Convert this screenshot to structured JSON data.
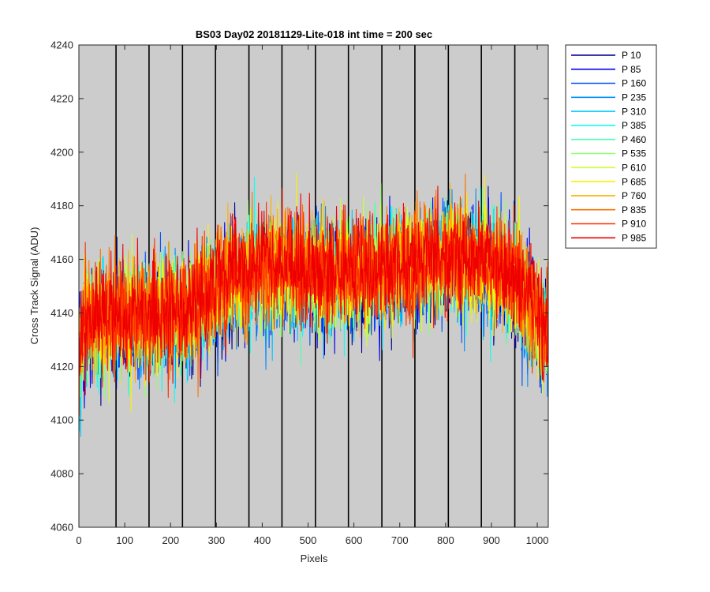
{
  "chart_data": {
    "type": "line",
    "title": "BS03 Day02 20181129-Lite-018 int time = 200 sec",
    "xlabel": "Pixels",
    "ylabel": "Cross Track Signal (ADU)",
    "xlim": [
      0,
      1024
    ],
    "ylim": [
      4060,
      4240
    ],
    "xticks": [
      0,
      100,
      200,
      300,
      400,
      500,
      600,
      700,
      800,
      900,
      1000
    ],
    "yticks": [
      4060,
      4080,
      4100,
      4120,
      4140,
      4160,
      4180,
      4200,
      4220,
      4240
    ],
    "background_color": "#cccccc",
    "vertical_lines_x": [
      81,
      153,
      226,
      298,
      371,
      443,
      516,
      588,
      661,
      733,
      806,
      878,
      951
    ],
    "legend_position": "outside-right-top",
    "num_points": 1024,
    "trend_x": [
      0,
      10,
      60,
      150,
      240,
      300,
      380,
      500,
      620,
      700,
      800,
      900,
      960,
      1000,
      1024
    ],
    "trend_y": [
      4122,
      4136,
      4137,
      4138,
      4140,
      4148,
      4156,
      4154,
      4155,
      4156,
      4160,
      4158,
      4150,
      4138,
      4130
    ],
    "noise_amplitude": 16,
    "series": [
      {
        "name": "P 10",
        "color": "#00008f"
      },
      {
        "name": "P 85",
        "color": "#0000ef"
      },
      {
        "name": "P 160",
        "color": "#0050ff"
      },
      {
        "name": "P 235",
        "color": "#0090ff"
      },
      {
        "name": "P 310",
        "color": "#00c8ff"
      },
      {
        "name": "P 385",
        "color": "#10ffef"
      },
      {
        "name": "P 460",
        "color": "#50ffb0"
      },
      {
        "name": "P 535",
        "color": "#8fff70"
      },
      {
        "name": "P 610",
        "color": "#cfff30"
      },
      {
        "name": "P 685",
        "color": "#ffef00"
      },
      {
        "name": "P 760",
        "color": "#ffb000"
      },
      {
        "name": "P 835",
        "color": "#ff7000"
      },
      {
        "name": "P 910",
        "color": "#ff3000"
      },
      {
        "name": "P 985",
        "color": "#ef0000"
      }
    ]
  }
}
